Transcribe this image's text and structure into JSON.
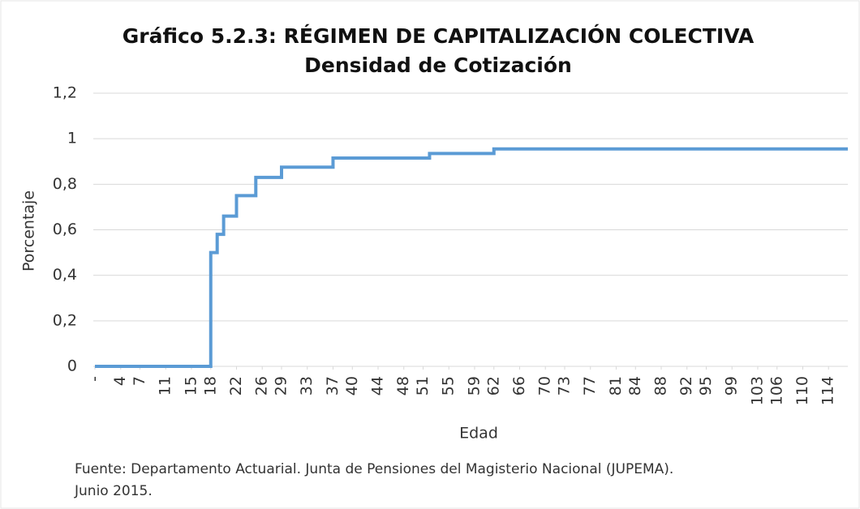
{
  "chart_data": {
    "type": "line",
    "title": "Gráfico 5.2.3: RÉGIMEN DE CAPITALIZACIÓN COLECTIVA",
    "subtitle": "Densidad de Cotización",
    "xlabel": "Edad",
    "ylabel": "Porcentaje",
    "source": [
      "Fuente: Departamento Actuarial. Junta de Pensiones del Magisterio Nacional (JUPEMA).",
      "Junio 2015."
    ],
    "x": [
      0,
      18,
      18,
      19,
      19,
      20,
      20,
      22,
      22,
      25,
      25,
      29,
      29,
      37,
      37,
      52,
      52,
      62,
      62,
      117
    ],
    "series": [
      {
        "name": "Densidad de Cotización",
        "color": "#5b9bd5",
        "values": [
          0,
          0,
          0.5,
          0.5,
          0.58,
          0.58,
          0.66,
          0.66,
          0.75,
          0.75,
          0.83,
          0.83,
          0.875,
          0.875,
          0.915,
          0.915,
          0.935,
          0.935,
          0.955,
          0.955
        ]
      }
    ],
    "xlim": [
      0,
      117
    ],
    "xticks": [
      {
        "value": 0,
        "label": "-"
      },
      4,
      7,
      11,
      15,
      18,
      22,
      26,
      29,
      33,
      37,
      40,
      44,
      48,
      51,
      55,
      59,
      62,
      66,
      70,
      73,
      77,
      81,
      84,
      88,
      92,
      95,
      99,
      103,
      106,
      110,
      114
    ],
    "ylim": [
      0,
      1.2
    ],
    "yticks": [
      0,
      {
        "value": 0.2,
        "label": "0,2"
      },
      {
        "value": 0.4,
        "label": "0,4"
      },
      {
        "value": 0.6,
        "label": "0,6"
      },
      {
        "value": 0.8,
        "label": "0,8"
      },
      1,
      {
        "value": 1.2,
        "label": "1,2"
      }
    ],
    "grid": true
  }
}
